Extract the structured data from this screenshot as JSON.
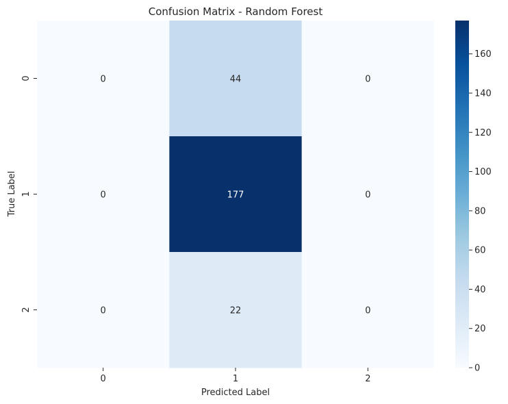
{
  "chart_data": {
    "type": "heatmap",
    "title": "Confusion Matrix - Random Forest",
    "xlabel": "Predicted Label",
    "ylabel": "True Label",
    "x_categories": [
      "0",
      "1",
      "2"
    ],
    "y_categories": [
      "0",
      "1",
      "2"
    ],
    "values": [
      [
        0,
        44,
        0
      ],
      [
        0,
        177,
        0
      ],
      [
        0,
        22,
        0
      ]
    ],
    "colormap": "Blues",
    "color_range": [
      0,
      177
    ],
    "colorbar_ticks": [
      0,
      20,
      40,
      60,
      80,
      100,
      120,
      140,
      160
    ],
    "colorbar_tick_labels": [
      "0",
      "20",
      "40",
      "60",
      "80",
      "100",
      "120",
      "140",
      "160"
    ],
    "annotation_dark_color": "#262626",
    "annotation_light_color": "#ffffff"
  }
}
